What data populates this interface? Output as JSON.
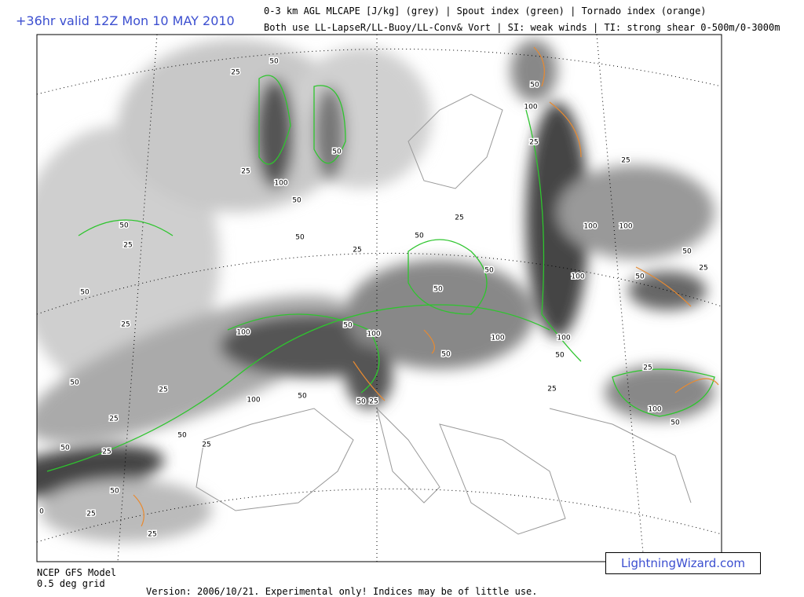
{
  "header": {
    "title": "+36hr valid 12Z Mon 10 MAY 2010",
    "line1": "0-3 km AGL MLCAPE [J/kg] (grey) | Spout index (green) | Tornado index (orange)",
    "line2": "Both use LL-LapseR/LL-Buoy/LL-Conv& Vort | SI: weak winds | TI: strong shear 0-500m/0-3000m"
  },
  "map": {
    "contour_labels": [
      "50",
      "25",
      "25",
      "100",
      "50",
      "50",
      "50",
      "50",
      "25",
      "50",
      "25",
      "50",
      "25",
      "25",
      "50",
      "25",
      "50",
      "25",
      "50",
      "0",
      "25",
      "25",
      "100",
      "100",
      "50",
      "50",
      "25",
      "100",
      "50",
      "50",
      "25",
      "25",
      "50",
      "50",
      "50",
      "100",
      "50",
      "100",
      "25",
      "100",
      "100",
      "100",
      "25",
      "50",
      "25",
      "50",
      "100",
      "50",
      "25",
      "50",
      "100",
      "25"
    ]
  },
  "footer": {
    "model": "NCEP GFS Model",
    "grid": "0.5 deg grid",
    "version": "Version: 2006/10/21.  Experimental only! Indices may be of little use.",
    "brand": "LightningWizard.com"
  }
}
